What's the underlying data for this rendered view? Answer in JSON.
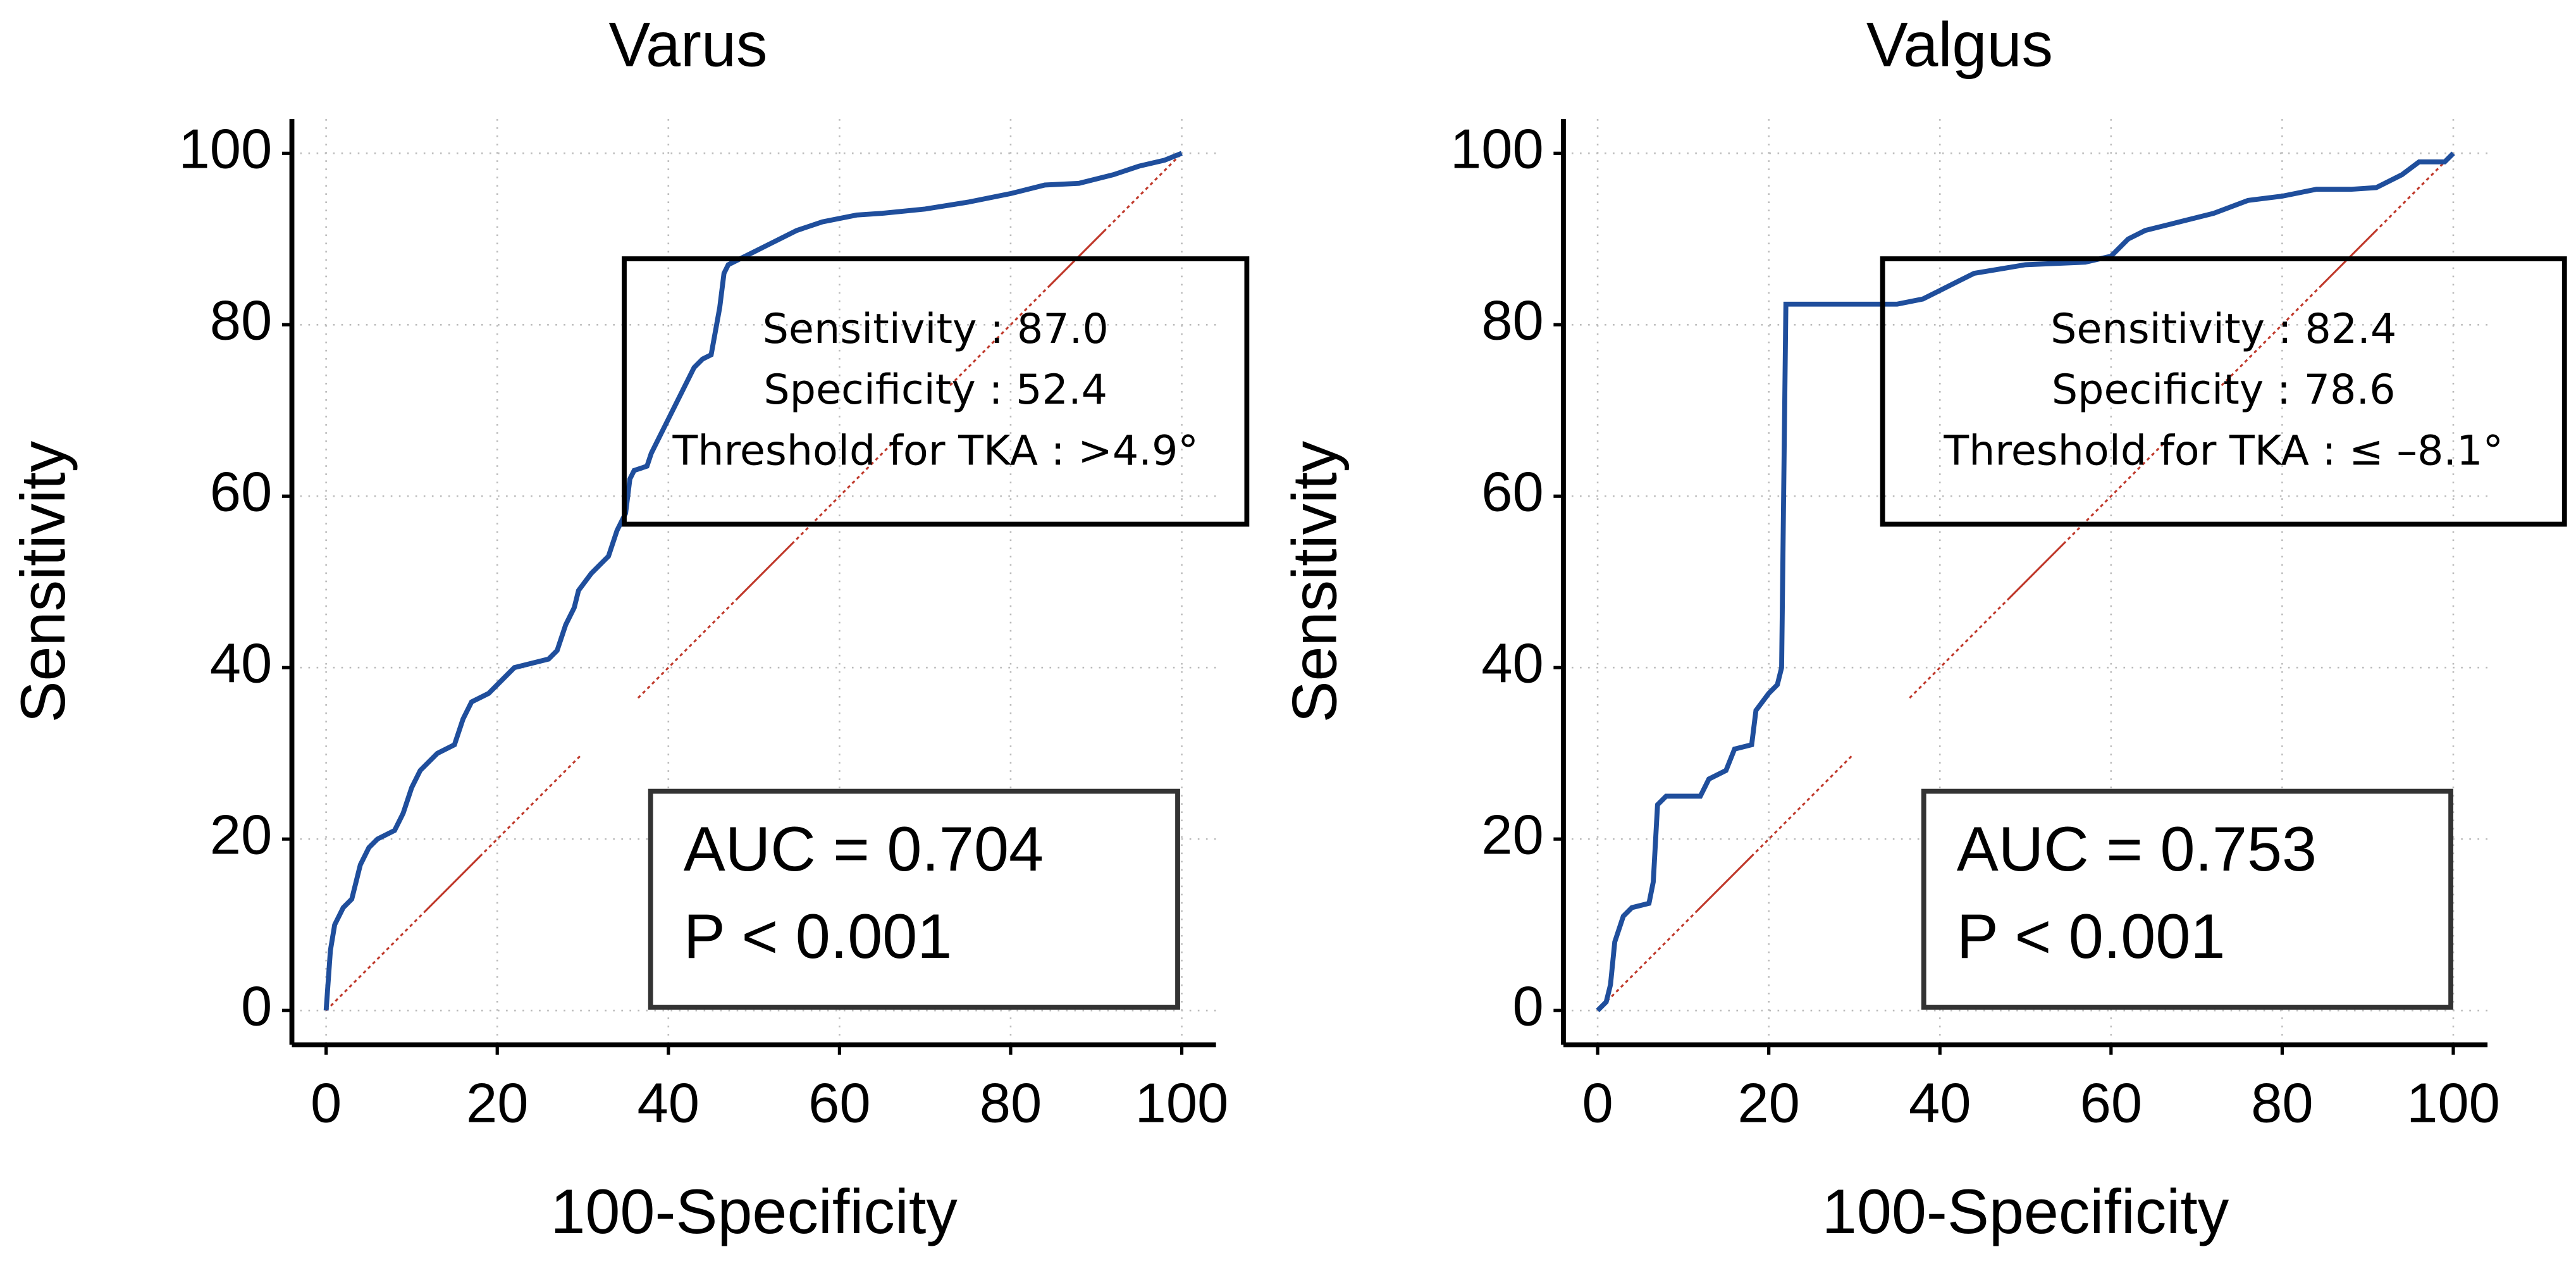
{
  "chart_data": [
    {
      "type": "line",
      "title": "Varus",
      "xlabel": "100-Specificity",
      "ylabel": "Sensitivity",
      "xlim": [
        -4,
        104
      ],
      "ylim": [
        -4,
        104
      ],
      "xticks": [
        0,
        20,
        40,
        60,
        80,
        100
      ],
      "yticks": [
        0,
        20,
        40,
        60,
        80,
        100
      ],
      "grid": true,
      "series": [
        {
          "color": "#1f4e9c",
          "x": [
            0,
            0.5,
            1,
            2,
            3,
            4,
            5,
            6,
            8,
            9,
            10,
            11,
            12,
            13,
            15,
            16,
            17,
            19,
            20,
            22,
            24,
            26,
            27,
            28,
            29,
            29.5,
            31,
            33,
            34,
            35,
            35.5,
            36,
            37.5,
            38,
            39,
            40,
            41,
            42,
            43,
            44,
            45,
            46,
            46.5,
            47,
            48,
            50,
            52,
            55,
            58,
            62,
            65,
            70,
            75,
            80,
            84,
            88,
            92,
            95,
            98,
            100
          ],
          "values": [
            0,
            7,
            10,
            12,
            13,
            17,
            19,
            20,
            21,
            23,
            26,
            28,
            29,
            30,
            31,
            34,
            36,
            37,
            38,
            40,
            40.5,
            41,
            42,
            45,
            47,
            49,
            51,
            53,
            56,
            58,
            62,
            63,
            63.5,
            65,
            67,
            69,
            71,
            73,
            75,
            76,
            76.5,
            82,
            86,
            87,
            87.5,
            88.5,
            89.5,
            91,
            92,
            92.8,
            93,
            93.5,
            94.3,
            95.3,
            96.3,
            96.5,
            97.5,
            98.5,
            99.2,
            100
          ]
        }
      ],
      "reference_line": {
        "color": "#c0392b",
        "x": [
          0,
          100
        ],
        "values": [
          0,
          100
        ]
      },
      "annotations": [
        [
          "Sensitivity : 87.0",
          "Specificity : 52.4",
          "Threshold for TKA : >4.9°"
        ],
        [
          "AUC = 0.704",
          "P < 0.001"
        ]
      ]
    },
    {
      "type": "line",
      "title": "Valgus",
      "xlabel": "100-Specificity",
      "ylabel": "Sensitivity",
      "xlim": [
        -4,
        104
      ],
      "ylim": [
        -4,
        104
      ],
      "xticks": [
        0,
        20,
        40,
        60,
        80,
        100
      ],
      "yticks": [
        0,
        20,
        40,
        60,
        80,
        100
      ],
      "grid": true,
      "series": [
        {
          "color": "#1f4e9c",
          "x": [
            0,
            1,
            1.5,
            2,
            3,
            4,
            6,
            6.5,
            7,
            8,
            12,
            13,
            15,
            16,
            18,
            18.5,
            20,
            21,
            21.5,
            22,
            30,
            35,
            38,
            40,
            42,
            44,
            50,
            57,
            60,
            62,
            64,
            68,
            72,
            76,
            80,
            84,
            88,
            91,
            94,
            96,
            99,
            100
          ],
          "values": [
            0,
            1,
            3,
            8,
            11,
            12,
            12.5,
            15,
            24,
            25,
            25,
            27,
            28,
            30.5,
            31,
            35,
            37,
            38,
            40,
            82.4,
            82.4,
            82.4,
            83,
            84,
            85,
            86,
            87,
            87.3,
            88,
            90,
            91,
            92,
            93,
            94.5,
            95,
            95.8,
            95.8,
            96,
            97.5,
            99,
            99,
            100
          ]
        }
      ],
      "reference_line": {
        "color": "#c0392b",
        "x": [
          0,
          100
        ],
        "values": [
          0,
          100
        ]
      },
      "annotations": [
        [
          "Sensitivity : 82.4",
          "Specificity : 78.6",
          "Threshold for TKA : ≤ –8.1°"
        ],
        [
          "AUC = 0.753",
          "P < 0.001"
        ]
      ]
    }
  ]
}
